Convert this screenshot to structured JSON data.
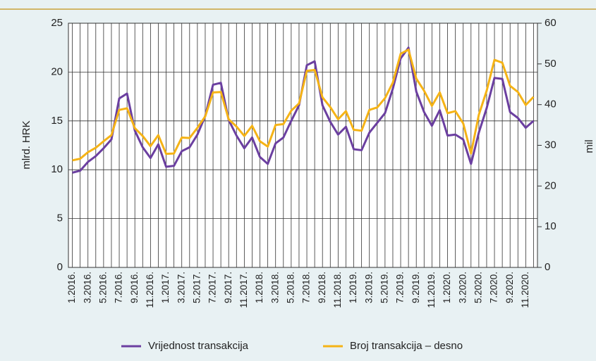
{
  "chart_data": {
    "type": "line",
    "categories": [
      "1.2016.",
      null,
      "3.2016.",
      null,
      "5.2016.",
      null,
      "7.2016.",
      null,
      "9.2016.",
      null,
      "11.2016.",
      null,
      "1.2017.",
      null,
      "3.2017.",
      null,
      "5.2017.",
      null,
      "7.2017.",
      null,
      "9.2017.",
      null,
      "11.2017.",
      null,
      "1.2018.",
      null,
      "3.2018.",
      null,
      "5.2018.",
      null,
      "7.2018.",
      null,
      "9.2018.",
      null,
      "11.2018.",
      null,
      "1.2019.",
      null,
      "3.2019.",
      null,
      "5.2019.",
      null,
      "7.2019.",
      null,
      "9.2019.",
      null,
      "11.2019.",
      null,
      "1.2020.",
      null,
      "3.2020.",
      null,
      "5.2020.",
      null,
      "7.2020.",
      null,
      "9.2020.",
      null,
      "11.2020.",
      null
    ],
    "series": [
      {
        "name": "Vrijednost transakcija",
        "color": "#6b3fa0",
        "values": [
          9.7,
          9.9,
          10.8,
          11.4,
          12.2,
          13.1,
          17.3,
          17.8,
          14.0,
          12.3,
          11.2,
          12.6,
          10.3,
          10.4,
          11.9,
          12.3,
          13.6,
          15.5,
          18.7,
          18.9,
          15.1,
          13.5,
          12.2,
          13.3,
          11.3,
          10.6,
          12.7,
          13.3,
          15.0,
          16.6,
          20.7,
          21.1,
          16.6,
          14.9,
          13.6,
          14.4,
          12.1,
          12.0,
          13.8,
          14.8,
          15.8,
          18.3,
          21.4,
          22.5,
          18.0,
          15.9,
          14.5,
          16.1,
          13.5,
          13.6,
          13.1,
          10.6,
          13.8,
          16.3,
          19.4,
          19.3,
          15.9,
          15.3,
          14.3,
          15.0
        ]
      },
      {
        "name": "Broj transakcija – desno",
        "color": "#f5b316",
        "axis": "y2",
        "values": [
          26.3,
          26.7,
          28.3,
          29.4,
          31.0,
          32.5,
          38.7,
          39.1,
          34.2,
          32.3,
          29.8,
          32.5,
          27.9,
          28.0,
          31.9,
          31.8,
          34.3,
          37.1,
          43.0,
          43.1,
          36.4,
          34.6,
          32.3,
          34.8,
          31.0,
          29.7,
          35.0,
          35.2,
          38.5,
          40.3,
          48.3,
          48.5,
          41.8,
          39.4,
          36.4,
          38.4,
          33.8,
          33.6,
          38.7,
          39.3,
          41.6,
          45.4,
          52.5,
          53.5,
          46.4,
          43.4,
          39.7,
          43.0,
          37.9,
          38.4,
          35.4,
          28.0,
          37.5,
          43.4,
          51.0,
          50.3,
          44.6,
          43.1,
          39.9,
          41.9
        ]
      }
    ],
    "ylabel": "mlrd. HRK",
    "y2label": "mil",
    "ylim": [
      0,
      25
    ],
    "yticks": [
      0,
      5,
      10,
      15,
      20,
      25
    ],
    "y2lim": [
      0,
      60
    ],
    "y2ticks": [
      0,
      10,
      20,
      30,
      40,
      50,
      60
    ],
    "grid": true,
    "legend": "bottom"
  }
}
